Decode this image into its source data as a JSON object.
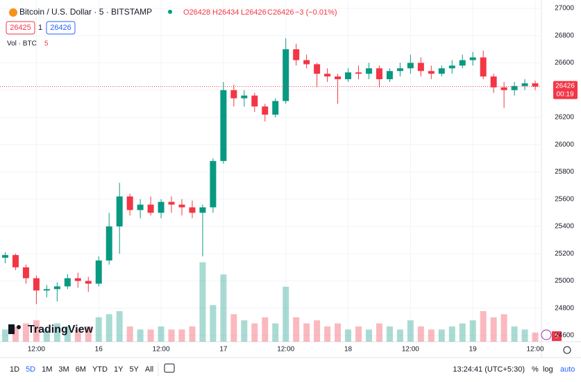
{
  "header": {
    "symbol": "Bitcoin / U.S. Dollar · 5 · BITSTAMP",
    "open": "O26428",
    "high": "H26434",
    "low": "L26426",
    "close": "C26426",
    "change": "−3 (−0.01%)",
    "bid": "26425",
    "spread": "1",
    "ask": "26426",
    "volume_label": "Vol · BTC",
    "volume_value": "5",
    "logo": "TradingView",
    "volume_tag": "5"
  },
  "toolbar": {
    "periods": [
      "1D",
      "5D",
      "1M",
      "3M",
      "6M",
      "YTD",
      "1Y",
      "5Y",
      "All"
    ],
    "clock": "13:24:41 (UTC+5:30)",
    "percent": "%",
    "log": "log",
    "auto": "auto"
  },
  "chart_data": {
    "type": "candlestick",
    "up_color": "#089981",
    "down_color": "#f23645",
    "x": [
      6,
      8,
      10,
      12,
      14,
      16,
      18,
      20,
      22,
      24,
      26,
      28,
      30,
      32,
      34,
      36,
      38,
      40,
      42,
      44,
      46,
      48,
      50,
      52,
      54,
      56,
      58,
      60,
      62,
      64,
      66,
      68,
      70,
      72,
      74,
      76,
      78,
      80,
      82,
      84,
      86,
      88,
      90,
      92,
      94,
      96,
      98,
      100,
      102,
      104,
      106,
      108
    ],
    "open": [
      25170,
      25190,
      25100,
      25020,
      24930,
      24940,
      24960,
      25020,
      25000,
      24980,
      25150,
      25400,
      25620,
      25520,
      25560,
      25500,
      25580,
      25560,
      25540,
      25500,
      25540,
      25880,
      26400,
      26340,
      26360,
      26280,
      26220,
      26320,
      26700,
      26620,
      26590,
      26520,
      26500,
      26480,
      26530,
      26520,
      26560,
      26480,
      26540,
      26560,
      26600,
      26540,
      26520,
      26560,
      26580,
      26620,
      26640,
      26500,
      26420,
      26400,
      26430,
      26450
    ],
    "high": [
      25210,
      25200,
      25120,
      25040,
      24970,
      24990,
      25050,
      25060,
      25030,
      25180,
      25500,
      25720,
      25640,
      25600,
      25620,
      25600,
      25620,
      25600,
      25590,
      25560,
      25900,
      26460,
      26440,
      26400,
      26380,
      26300,
      26340,
      26780,
      26740,
      26660,
      26600,
      26560,
      26520,
      26560,
      26580,
      26600,
      26580,
      26560,
      26600,
      26660,
      26640,
      26580,
      26580,
      26620,
      26660,
      26680,
      26690,
      26520,
      26460,
      26460,
      26480,
      26470
    ],
    "low": [
      25130,
      25080,
      24980,
      24830,
      24880,
      24850,
      24940,
      24950,
      24920,
      24960,
      25120,
      25200,
      25480,
      25460,
      25480,
      25460,
      25500,
      25480,
      25460,
      25180,
      25500,
      25860,
      26280,
      26280,
      26240,
      26170,
      26200,
      26300,
      26580,
      26560,
      26420,
      26460,
      26300,
      26460,
      26480,
      26480,
      26420,
      26460,
      26500,
      26520,
      26500,
      26480,
      26500,
      26520,
      26560,
      26580,
      26480,
      26380,
      26270,
      26360,
      26400,
      26400
    ],
    "close": [
      25190,
      25100,
      25020,
      24930,
      24940,
      24960,
      25020,
      25000,
      24980,
      25150,
      25400,
      25620,
      25520,
      25560,
      25500,
      25580,
      25560,
      25540,
      25500,
      25540,
      25880,
      26400,
      26340,
      26360,
      26280,
      26220,
      26320,
      26700,
      26620,
      26590,
      26520,
      26500,
      26480,
      26530,
      26520,
      26560,
      26480,
      26540,
      26560,
      26600,
      26540,
      26520,
      26560,
      26580,
      26620,
      26640,
      26500,
      26420,
      26400,
      26430,
      26450,
      26426
    ],
    "volume": [
      20,
      25,
      30,
      35,
      20,
      30,
      25,
      20,
      25,
      40,
      45,
      50,
      25,
      20,
      20,
      25,
      20,
      20,
      25,
      130,
      60,
      110,
      45,
      35,
      30,
      40,
      30,
      90,
      40,
      30,
      35,
      25,
      30,
      20,
      25,
      20,
      30,
      25,
      20,
      35,
      25,
      20,
      20,
      25,
      30,
      35,
      50,
      40,
      45,
      25,
      20,
      15
    ],
    "volume_lim": [
      0,
      150
    ],
    "xlim": [
      5,
      109.2
    ],
    "xticks": [
      {
        "value": 12,
        "label": "12:00"
      },
      {
        "value": 24,
        "label": "16"
      },
      {
        "value": 36,
        "label": "12:00"
      },
      {
        "value": 48,
        "label": "17"
      },
      {
        "value": 60,
        "label": "12:00"
      },
      {
        "value": 72,
        "label": "18"
      },
      {
        "value": 84,
        "label": "12:00"
      },
      {
        "value": 96,
        "label": "19"
      },
      {
        "value": 108,
        "label": "12:00"
      }
    ],
    "ylim": [
      24600,
      27000
    ],
    "yticks": [
      24600,
      24800,
      25000,
      25200,
      25400,
      25600,
      25800,
      26000,
      26200,
      26400,
      26600,
      26800,
      27000
    ],
    "last_price": 26426,
    "countdown": "00:19"
  }
}
